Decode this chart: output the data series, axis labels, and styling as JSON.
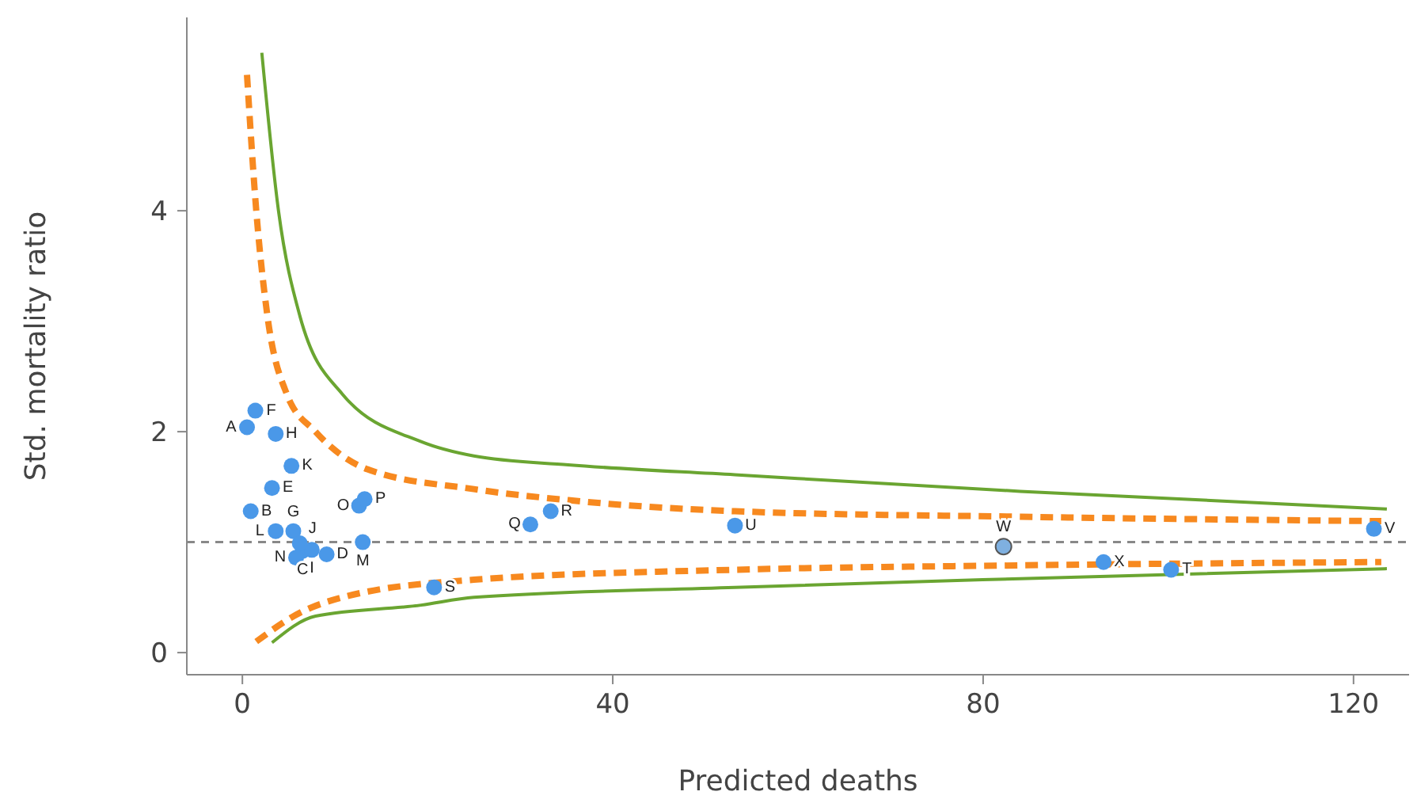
{
  "chart_data": {
    "type": "scatter",
    "xlabel": "Predicted deaths",
    "ylabel": "Std. mortality ratio",
    "xlim": [
      -6,
      126
    ],
    "ylim": [
      -0.2,
      5.75
    ],
    "xticks": [
      0,
      40,
      80,
      120
    ],
    "yticks": [
      0,
      2,
      4
    ],
    "grid": false,
    "legend": false,
    "ref_lines": [
      {
        "axis": "y",
        "value": 1,
        "color": "#888888",
        "line_style": "dashed"
      }
    ],
    "series": [
      {
        "type": "scatter",
        "color": "#4a98e8",
        "marker": "circle",
        "x": [
          0.5,
          0.9,
          6.5,
          9.1,
          3.2,
          1.4,
          5.5,
          3.6,
          7.5,
          6.2,
          5.3,
          3.6,
          13.0,
          5.8,
          12.6,
          13.2,
          31.1,
          33.3,
          20.7,
          100.3,
          53.2,
          122.2,
          82.2,
          93.0
        ],
        "values": [
          2.04,
          1.28,
          0.92,
          0.89,
          1.49,
          2.19,
          1.1,
          1.98,
          0.93,
          0.99,
          1.69,
          1.1,
          1.0,
          0.86,
          1.33,
          1.39,
          1.16,
          1.28,
          0.59,
          0.75,
          1.15,
          1.12,
          0.96,
          0.82
        ],
        "colors": [
          "#4a98e8",
          "#4a98e8",
          "#4a98e8",
          "#4a98e8",
          "#4a98e8",
          "#4a98e8",
          "#4a98e8",
          "#4a98e8",
          "#4a98e8",
          "#4a98e8",
          "#4a98e8",
          "#4a98e8",
          "#4a98e8",
          "#4a98e8",
          "#4a98e8",
          "#4a98e8",
          "#4a98e8",
          "#4a98e8",
          "#4a98e8",
          "#4a98e8",
          "#4a98e8",
          "#4a98e8",
          "#7fb0e0",
          "#4a98e8"
        ],
        "value_labels": [
          "A",
          "B",
          "C",
          "D",
          "E",
          "F",
          "G",
          "H",
          "I",
          "J",
          "K",
          "L",
          "M",
          "N",
          "O",
          "P",
          "Q",
          "R",
          "S",
          "T",
          "U",
          "V",
          "W",
          "X"
        ]
      },
      {
        "type": "line",
        "color": "#f7891f",
        "line_style": "dashed",
        "marker": "none",
        "x": [
          0.5,
          1.5,
          2.7,
          4.8,
          7.9,
          13.5,
          25,
          35.2,
          53.2,
          84,
          123
        ],
        "values": [
          5.23,
          4.0,
          3.05,
          2.34,
          2.0,
          1.66,
          1.48,
          1.38,
          1.28,
          1.23,
          1.19
        ]
      },
      {
        "type": "line",
        "color": "#f7891f",
        "line_style": "dashed",
        "marker": "none",
        "x": [
          1.5,
          6.2,
          10.8,
          25,
          53.2,
          84,
          123
        ],
        "values": [
          0.1,
          0.36,
          0.5,
          0.66,
          0.75,
          0.79,
          0.82
        ]
      },
      {
        "type": "line",
        "color": "#6aa531",
        "line_style": "solid",
        "marker": "none",
        "x": [
          2.1,
          3.9,
          6.2,
          10.8,
          19.3,
          25,
          35.2,
          53.2,
          84,
          123.6
        ],
        "values": [
          5.43,
          4.0,
          3.05,
          2.34,
          1.91,
          1.78,
          1.7,
          1.61,
          1.46,
          1.3
        ]
      },
      {
        "type": "line",
        "color": "#6aa531",
        "line_style": "solid",
        "marker": "none",
        "x": [
          3.2,
          7.9,
          19.3,
          25,
          53.2,
          84,
          123.6
        ],
        "values": [
          0.09,
          0.33,
          0.43,
          0.5,
          0.59,
          0.67,
          0.76
        ]
      }
    ]
  }
}
